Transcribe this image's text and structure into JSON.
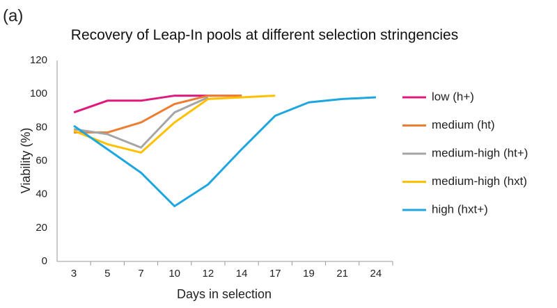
{
  "chart_data": {
    "type": "line",
    "panel_label": "(a)",
    "title": "Recovery of Leap-In pools at different selection stringencies",
    "x_label": "Days in selection",
    "y_label": "Viability (%)",
    "categories": [
      "3",
      "5",
      "7",
      "10",
      "12",
      "14",
      "17",
      "19",
      "21",
      "24"
    ],
    "ylim": [
      0,
      120
    ],
    "yticks": [
      0,
      20,
      40,
      60,
      80,
      100,
      120
    ],
    "grid": false,
    "legend": "right",
    "series": [
      {
        "name": "low (h+)",
        "color": "#e0197d",
        "values": [
          89,
          96,
          96,
          99,
          99,
          99,
          null,
          null,
          null,
          null
        ]
      },
      {
        "name": "medium (ht)",
        "color": "#ed7d31",
        "values": [
          77,
          77,
          83,
          94,
          99,
          99,
          null,
          null,
          null,
          null
        ]
      },
      {
        "name": "medium-high (ht+)",
        "color": "#a5a5a5",
        "values": [
          79,
          76,
          68,
          89,
          98,
          null,
          null,
          null,
          null,
          null
        ]
      },
      {
        "name": "medium-high (hxt)",
        "color": "#ffc000",
        "values": [
          78,
          70,
          65,
          83,
          97,
          98,
          99,
          null,
          null,
          null
        ]
      },
      {
        "name": "high (hxt+)",
        "color": "#1ea6e0",
        "values": [
          81,
          67,
          53,
          33,
          46,
          67,
          87,
          95,
          97,
          98
        ]
      }
    ]
  }
}
